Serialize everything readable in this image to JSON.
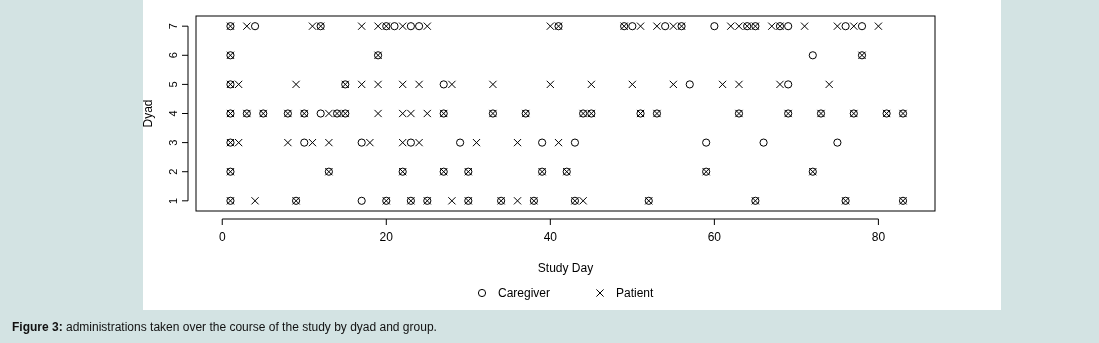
{
  "chart_data": {
    "type": "scatter",
    "xlabel": "Study Day",
    "ylabel": "Dyad",
    "xlim": [
      -3.2,
      86.9
    ],
    "ylim": [
      0.65,
      7.35
    ],
    "xticks": [
      0,
      20,
      40,
      60,
      80
    ],
    "yticks": [
      1,
      2,
      3,
      4,
      5,
      6,
      7
    ],
    "legend": "bottom",
    "grid": false,
    "series": [
      {
        "name": "Caregiver",
        "color": "#000000",
        "marker": "circle",
        "x": [
          1,
          9,
          17,
          20,
          23,
          25,
          30,
          34,
          38,
          43,
          52,
          65,
          76,
          83,
          1,
          13,
          22,
          27,
          30,
          39,
          42,
          59,
          72,
          1,
          10,
          17,
          23,
          29,
          39,
          43,
          59,
          66,
          75,
          1,
          3,
          5,
          8,
          10,
          12,
          14,
          15,
          27,
          33,
          37,
          44,
          45,
          51,
          53,
          63,
          69,
          73,
          77,
          81,
          83,
          1,
          15,
          27,
          57,
          69,
          1,
          19,
          72,
          78,
          1,
          4,
          12,
          20,
          21,
          23,
          24,
          41,
          49,
          50,
          54,
          56,
          60,
          64,
          65,
          68,
          69,
          76,
          78
        ],
        "values": [
          1,
          1,
          1,
          1,
          1,
          1,
          1,
          1,
          1,
          1,
          1,
          1,
          1,
          1,
          2,
          2,
          2,
          2,
          2,
          2,
          2,
          2,
          2,
          3,
          3,
          3,
          3,
          3,
          3,
          3,
          3,
          3,
          3,
          4,
          4,
          4,
          4,
          4,
          4,
          4,
          4,
          4,
          4,
          4,
          4,
          4,
          4,
          4,
          4,
          4,
          4,
          4,
          4,
          4,
          5,
          5,
          5,
          5,
          5,
          6,
          6,
          6,
          6,
          7,
          7,
          7,
          7,
          7,
          7,
          7,
          7,
          7,
          7,
          7,
          7,
          7,
          7,
          7,
          7,
          7,
          7,
          7
        ]
      },
      {
        "name": "Patient",
        "color": "#000000",
        "marker": "cross",
        "x": [
          1,
          4,
          9,
          20,
          23,
          25,
          28,
          30,
          34,
          36,
          38,
          43,
          44,
          52,
          65,
          76,
          83,
          1,
          13,
          22,
          27,
          30,
          39,
          42,
          59,
          72,
          1,
          2,
          8,
          11,
          13,
          18,
          22,
          24,
          31,
          36,
          41,
          1,
          3,
          5,
          8,
          10,
          13,
          14,
          15,
          19,
          22,
          23,
          25,
          27,
          33,
          37,
          44,
          45,
          51,
          53,
          63,
          69,
          73,
          77,
          81,
          83,
          1,
          2,
          9,
          15,
          17,
          19,
          22,
          24,
          28,
          33,
          40,
          45,
          50,
          55,
          61,
          63,
          68,
          74,
          1,
          19,
          78,
          1,
          3,
          11,
          12,
          17,
          19,
          20,
          22,
          25,
          40,
          41,
          49,
          51,
          53,
          55,
          56,
          62,
          63,
          64,
          65,
          67,
          68,
          71,
          75,
          77,
          80
        ],
        "values": [
          1,
          1,
          1,
          1,
          1,
          1,
          1,
          1,
          1,
          1,
          1,
          1,
          1,
          1,
          1,
          1,
          1,
          2,
          2,
          2,
          2,
          2,
          2,
          2,
          2,
          2,
          3,
          3,
          3,
          3,
          3,
          3,
          3,
          3,
          3,
          3,
          3,
          4,
          4,
          4,
          4,
          4,
          4,
          4,
          4,
          4,
          4,
          4,
          4,
          4,
          4,
          4,
          4,
          4,
          4,
          4,
          4,
          4,
          4,
          4,
          4,
          4,
          5,
          5,
          5,
          5,
          5,
          5,
          5,
          5,
          5,
          5,
          5,
          5,
          5,
          5,
          5,
          5,
          5,
          5,
          6,
          6,
          6,
          7,
          7,
          7,
          7,
          7,
          7,
          7,
          7,
          7,
          7,
          7,
          7,
          7,
          7,
          7,
          7,
          7,
          7,
          7,
          7,
          7,
          7,
          7,
          7,
          7,
          7
        ]
      }
    ],
    "annotations": [
      "Figure 3: administrations taken over the course of the study by dyad and group."
    ]
  }
}
